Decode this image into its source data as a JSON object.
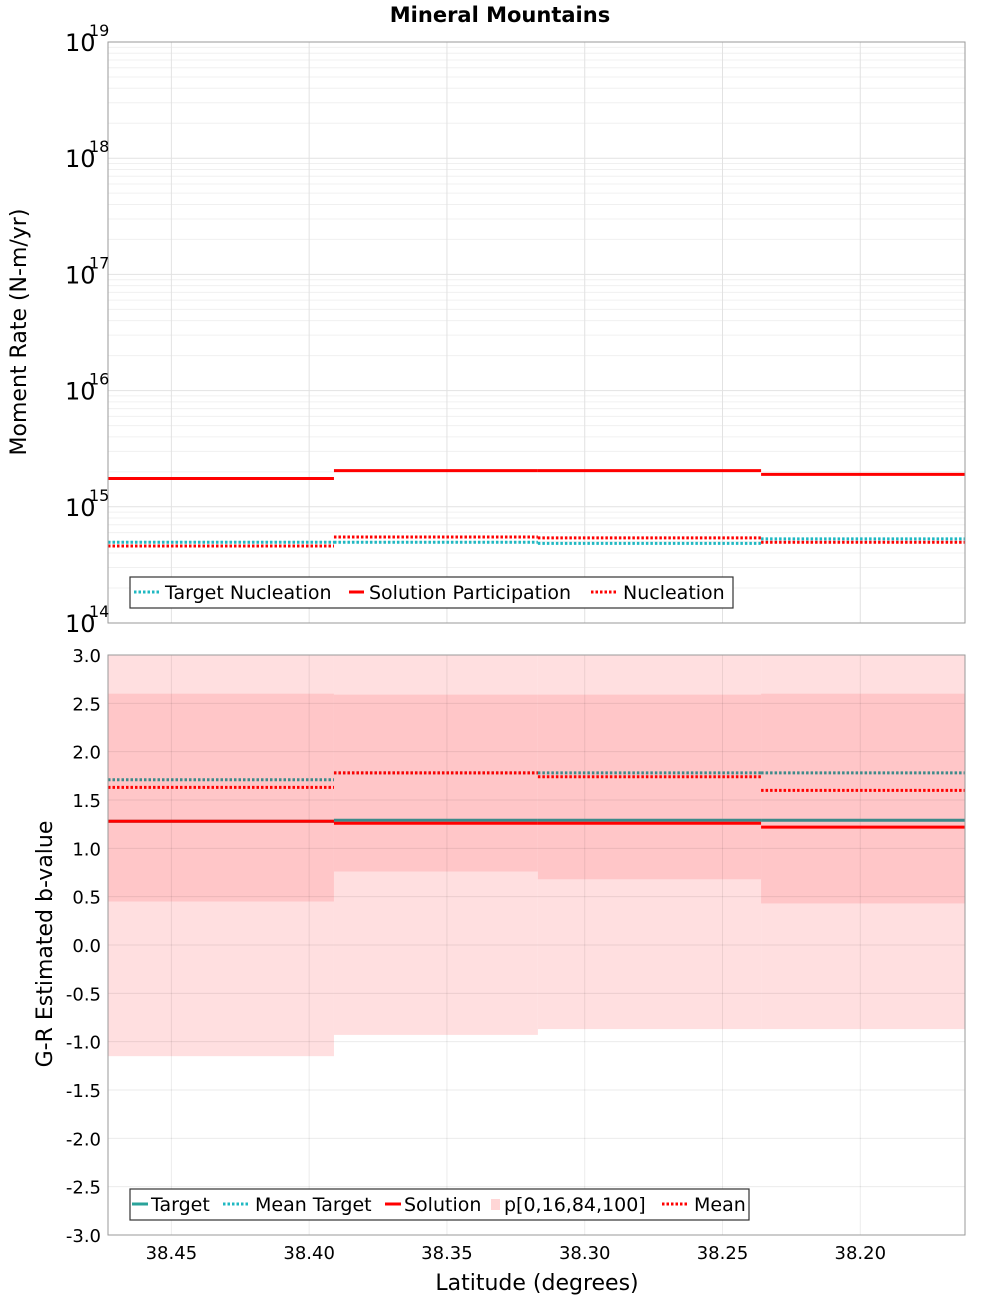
{
  "chart_data": [
    {
      "type": "line",
      "drawstyle": "steps",
      "title": "Mineral Mountains",
      "xlabel": "",
      "ylabel": "Moment Rate (N-m/yr)",
      "yscale": "log",
      "ylim": [
        100000000000000.0,
        1e+19
      ],
      "xlim": [
        38.473,
        38.162
      ],
      "x_inverted": true,
      "x_ticks": [
        38.45,
        38.4,
        38.35,
        38.3,
        38.25,
        38.2
      ],
      "y_ticks": [
        {
          "base": "10",
          "exp": "14",
          "value": 100000000000000.0
        },
        {
          "base": "10",
          "exp": "15",
          "value": 1000000000000000.0
        },
        {
          "base": "10",
          "exp": "16",
          "value": 1e+16
        },
        {
          "base": "10",
          "exp": "17",
          "value": 1e+17
        },
        {
          "base": "10",
          "exp": "18",
          "value": 1e+18
        },
        {
          "base": "10",
          "exp": "19",
          "value": 1e+19
        }
      ],
      "bin_edges": [
        38.473,
        38.391,
        38.317,
        38.236,
        38.162
      ],
      "series": [
        {
          "name": "Target Nucleation",
          "style": "dotted",
          "color": "#1fb8c2",
          "values": [
            495000000000000.0,
            495000000000000.0,
            485000000000000.0,
            530000000000000.0
          ]
        },
        {
          "name": "Solution Participation",
          "style": "solid",
          "color": "#ff0000",
          "values": [
            1750000000000000.0,
            2050000000000000.0,
            2050000000000000.0,
            1900000000000000.0
          ]
        },
        {
          "name": "Nucleation",
          "style": "dotted",
          "color": "#ff0000",
          "values": [
            460000000000000.0,
            550000000000000.0,
            540000000000000.0,
            495000000000000.0
          ]
        }
      ],
      "legend": {
        "position": "bottom-left",
        "labels": [
          "Target Nucleation",
          "Solution Participation",
          "Nucleation"
        ]
      }
    },
    {
      "type": "line",
      "drawstyle": "steps",
      "title": "",
      "xlabel": "Latitude (degrees)",
      "ylabel": "G-R Estimated b-value",
      "ylim": [
        -3.0,
        3.0
      ],
      "xlim": [
        38.473,
        38.162
      ],
      "x_inverted": true,
      "x_ticks": [
        38.45,
        38.4,
        38.35,
        38.3,
        38.25,
        38.2
      ],
      "y_ticks": [
        {
          "value": 3.0,
          "label": "3.0"
        },
        {
          "value": 2.5,
          "label": "2.5"
        },
        {
          "value": 2.0,
          "label": "2.0"
        },
        {
          "value": 1.5,
          "label": "1.5"
        },
        {
          "value": 1.0,
          "label": "1.0"
        },
        {
          "value": 0.5,
          "label": "0.5"
        },
        {
          "value": 0.0,
          "label": "0.0"
        },
        {
          "value": -0.5,
          "label": "-0.5"
        },
        {
          "value": -1.0,
          "label": "-1.0"
        },
        {
          "value": -1.5,
          "label": "-1.5"
        },
        {
          "value": -2.0,
          "label": "-2.0"
        },
        {
          "value": -2.5,
          "label": "-2.5"
        },
        {
          "value": -3.0,
          "label": "-3.0"
        }
      ],
      "bin_edges": [
        38.473,
        38.391,
        38.317,
        38.236,
        38.162
      ],
      "bands": {
        "name": "p[0,16,84,100]",
        "color": "#ff6b6b",
        "p0": [
          -1.15,
          -0.93,
          -0.87,
          -0.87
        ],
        "p16": [
          0.45,
          0.76,
          0.68,
          0.43
        ],
        "p84": [
          2.6,
          2.59,
          2.59,
          2.6
        ],
        "p100": [
          3.0,
          3.0,
          3.0,
          3.0
        ]
      },
      "series": [
        {
          "name": "Target",
          "style": "solid",
          "color": "#3d8a8a",
          "values": [
            1.28,
            1.29,
            1.29,
            1.29
          ]
        },
        {
          "name": "Mean Target",
          "style": "dotted",
          "color": "#3d8a8a",
          "values": [
            1.71,
            1.78,
            1.78,
            1.78
          ]
        },
        {
          "name": "Solution",
          "style": "solid",
          "color": "#ff0000",
          "values": [
            1.28,
            1.26,
            1.26,
            1.22
          ]
        },
        {
          "name": "Mean",
          "style": "dotted",
          "color": "#ff0000",
          "values": [
            1.63,
            1.78,
            1.74,
            1.6
          ]
        }
      ],
      "legend": {
        "position": "bottom-left",
        "labels": [
          "Target",
          "Mean Target",
          "Solution",
          "p[0,16,84,100]",
          "Mean"
        ]
      }
    }
  ]
}
